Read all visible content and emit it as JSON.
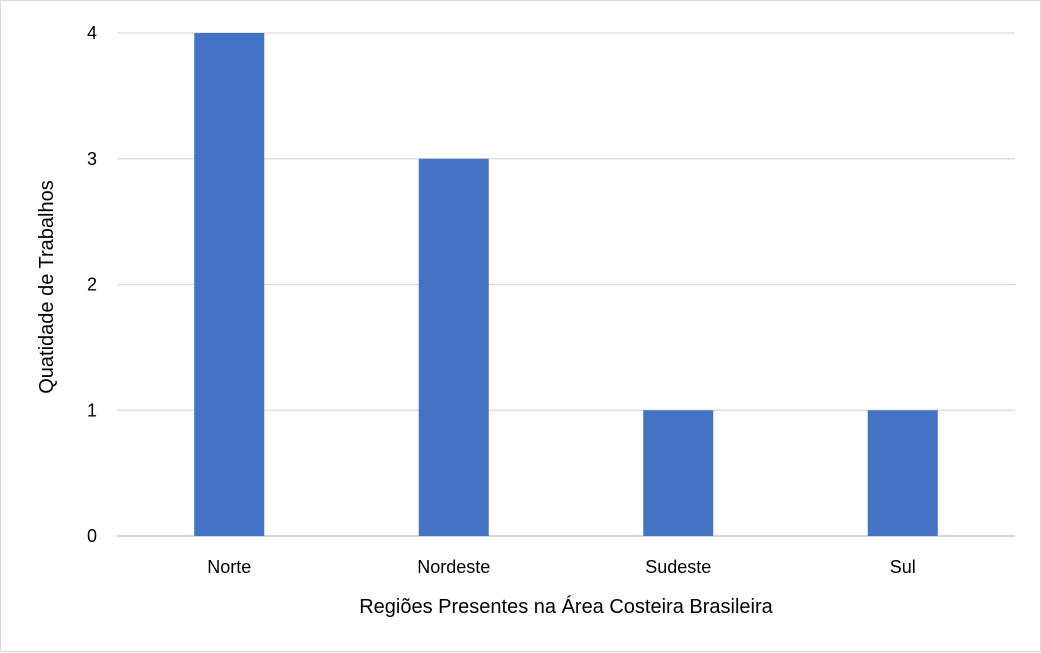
{
  "chart_data": {
    "type": "bar",
    "title": "",
    "categories": [
      "Norte",
      "Nordeste",
      "Sudeste",
      "Sul"
    ],
    "values": [
      4,
      3,
      1,
      1
    ],
    "xlabel": "Regiões Presentes na Área Costeira Brasileira",
    "ylabel": "Quatidade de Trabalhos",
    "ylim": [
      0,
      4
    ],
    "yticks": [
      "0",
      "1",
      "2",
      "3",
      "4"
    ],
    "grid": true,
    "legend": "none",
    "colors": {
      "bar": "#4472c4",
      "gridline": "#d9d9d9",
      "axis": "#bfbfbf"
    }
  }
}
